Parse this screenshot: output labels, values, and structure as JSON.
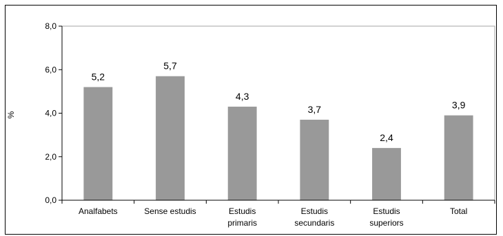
{
  "chart_data": {
    "type": "bar",
    "title": "",
    "xlabel": "",
    "ylabel": "%",
    "ylim": [
      0,
      8
    ],
    "yticks": [
      0,
      2,
      4,
      6,
      8
    ],
    "ytick_labels": [
      "0,0",
      "2,0",
      "4,0",
      "6,0",
      "8,0"
    ],
    "grid": false,
    "categories": [
      [
        "Analfabets"
      ],
      [
        "Sense estudis"
      ],
      [
        "Estudis",
        "primaris"
      ],
      [
        "Estudis",
        "secundaris"
      ],
      [
        "Estudis",
        "superiors"
      ],
      [
        "Total"
      ]
    ],
    "values": [
      5.2,
      5.7,
      4.3,
      3.7,
      2.4,
      3.9
    ],
    "value_labels": [
      "5,2",
      "5,7",
      "4,3",
      "3,7",
      "2,4",
      "3,9"
    ],
    "colors": {
      "bar": "#999999",
      "axis": "#000000",
      "plot_border": "#a6a6a6"
    }
  }
}
